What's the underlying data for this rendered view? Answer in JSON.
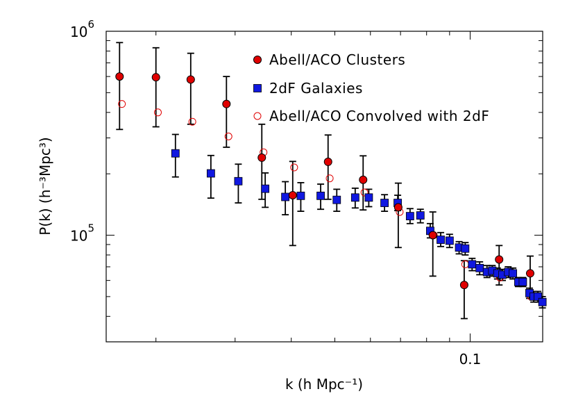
{
  "chart_data": {
    "type": "scatter",
    "x_scale": "log",
    "y_scale": "log",
    "xlim": [
      0.0155,
      0.145
    ],
    "ylim": [
      30000,
      1000000
    ],
    "xlabel": "k (h Mpc⁻¹)",
    "ylabel": "P(k) (h⁻³Mpc³)",
    "x_ticks": [
      {
        "value": 0.1,
        "label": "0.1"
      }
    ],
    "y_ticks": [
      {
        "value": 100000,
        "mantissa": "10",
        "exponent": "5"
      },
      {
        "value": 1000000,
        "mantissa": "10",
        "exponent": "6"
      }
    ],
    "legend_position": "top-right",
    "colors": {
      "clusters": "#e00000",
      "galaxies": "#1018e0",
      "convolved": "#e00000",
      "errorbar": "#000000"
    },
    "series": [
      {
        "name": "Abell/ACO Clusters",
        "marker": "filled-circle",
        "points": [
          {
            "x": 0.0166,
            "y": 600000,
            "lo": 330000,
            "hi": 880000
          },
          {
            "x": 0.02,
            "y": 595000,
            "lo": 340000,
            "hi": 830000
          },
          {
            "x": 0.0239,
            "y": 580000,
            "lo": 350000,
            "hi": 780000
          },
          {
            "x": 0.0287,
            "y": 440000,
            "lo": 270000,
            "hi": 600000
          },
          {
            "x": 0.0344,
            "y": 240000,
            "lo": 150000,
            "hi": 350000
          },
          {
            "x": 0.0403,
            "y": 157000,
            "lo": 89000,
            "hi": 230000
          },
          {
            "x": 0.0483,
            "y": 229000,
            "lo": 150000,
            "hi": 310000
          },
          {
            "x": 0.0578,
            "y": 187000,
            "lo": 133000,
            "hi": 245000
          },
          {
            "x": 0.0692,
            "y": 137000,
            "lo": 87000,
            "hi": 180000
          },
          {
            "x": 0.0826,
            "y": 100000,
            "lo": 63000,
            "hi": 130000
          },
          {
            "x": 0.097,
            "y": 57000,
            "lo": 39000,
            "hi": 75000
          },
          {
            "x": 0.116,
            "y": 76000,
            "lo": 57000,
            "hi": 89000
          },
          {
            "x": 0.136,
            "y": 65000,
            "lo": 51000,
            "hi": 79000
          }
        ]
      },
      {
        "name": "2dF Galaxies",
        "marker": "filled-square",
        "points": [
          {
            "x": 0.0221,
            "y": 252000,
            "lo": 193000,
            "hi": 312000
          },
          {
            "x": 0.0265,
            "y": 201000,
            "lo": 152000,
            "hi": 246000
          },
          {
            "x": 0.0305,
            "y": 184000,
            "lo": 144000,
            "hi": 223000
          },
          {
            "x": 0.035,
            "y": 169000,
            "lo": 137000,
            "hi": 202000
          },
          {
            "x": 0.0388,
            "y": 154000,
            "lo": 126000,
            "hi": 183000
          },
          {
            "x": 0.042,
            "y": 156000,
            "lo": 131000,
            "hi": 181000
          },
          {
            "x": 0.0465,
            "y": 156000,
            "lo": 134000,
            "hi": 178000
          },
          {
            "x": 0.0505,
            "y": 149000,
            "lo": 131000,
            "hi": 168000
          },
          {
            "x": 0.0555,
            "y": 153000,
            "lo": 136000,
            "hi": 170000
          },
          {
            "x": 0.0595,
            "y": 153000,
            "lo": 138000,
            "hi": 168000
          },
          {
            "x": 0.0645,
            "y": 144000,
            "lo": 131000,
            "hi": 158000
          },
          {
            "x": 0.069,
            "y": 144000,
            "lo": 132000,
            "hi": 157000
          },
          {
            "x": 0.0735,
            "y": 124000,
            "lo": 114000,
            "hi": 135000
          },
          {
            "x": 0.0775,
            "y": 125000,
            "lo": 115000,
            "hi": 134000
          },
          {
            "x": 0.0815,
            "y": 105000,
            "lo": 97000,
            "hi": 114000
          },
          {
            "x": 0.086,
            "y": 95000,
            "lo": 88000,
            "hi": 103000
          },
          {
            "x": 0.09,
            "y": 94000,
            "lo": 87000,
            "hi": 101000
          },
          {
            "x": 0.0945,
            "y": 87000,
            "lo": 81000,
            "hi": 93000
          },
          {
            "x": 0.0975,
            "y": 86000,
            "lo": 80000,
            "hi": 92000
          },
          {
            "x": 0.101,
            "y": 72000,
            "lo": 67000,
            "hi": 77000
          },
          {
            "x": 0.105,
            "y": 69000,
            "lo": 64000,
            "hi": 74000
          },
          {
            "x": 0.109,
            "y": 66000,
            "lo": 62000,
            "hi": 71000
          },
          {
            "x": 0.112,
            "y": 67000,
            "lo": 63000,
            "hi": 71000
          },
          {
            "x": 0.115,
            "y": 65000,
            "lo": 61000,
            "hi": 69000
          },
          {
            "x": 0.118,
            "y": 64000,
            "lo": 60000,
            "hi": 68000
          },
          {
            "x": 0.1215,
            "y": 66000,
            "lo": 62000,
            "hi": 70000
          },
          {
            "x": 0.1245,
            "y": 65000,
            "lo": 61000,
            "hi": 69000
          },
          {
            "x": 0.128,
            "y": 59000,
            "lo": 56000,
            "hi": 62000
          },
          {
            "x": 0.131,
            "y": 59000,
            "lo": 56000,
            "hi": 62000
          },
          {
            "x": 0.1355,
            "y": 52000,
            "lo": 49000,
            "hi": 55000
          },
          {
            "x": 0.1385,
            "y": 50000,
            "lo": 47000,
            "hi": 53000
          },
          {
            "x": 0.1415,
            "y": 50000,
            "lo": 47000,
            "hi": 53000
          },
          {
            "x": 0.1448,
            "y": 47000,
            "lo": 44000,
            "hi": 50000
          }
        ]
      },
      {
        "name": "Abell/ACO Convolved with 2dF",
        "marker": "open-circle",
        "points": [
          {
            "x": 0.0168,
            "y": 440000
          },
          {
            "x": 0.0202,
            "y": 400000
          },
          {
            "x": 0.0241,
            "y": 360000
          },
          {
            "x": 0.029,
            "y": 305000
          },
          {
            "x": 0.0347,
            "y": 255000
          },
          {
            "x": 0.0406,
            "y": 215000
          },
          {
            "x": 0.0487,
            "y": 190000
          },
          {
            "x": 0.0582,
            "y": 162000
          },
          {
            "x": 0.0697,
            "y": 130000
          },
          {
            "x": 0.083,
            "y": 100000
          },
          {
            "x": 0.0975,
            "y": 72000
          },
          {
            "x": 0.1165,
            "y": 62000
          },
          {
            "x": 0.1365,
            "y": 50000
          }
        ]
      }
    ]
  }
}
